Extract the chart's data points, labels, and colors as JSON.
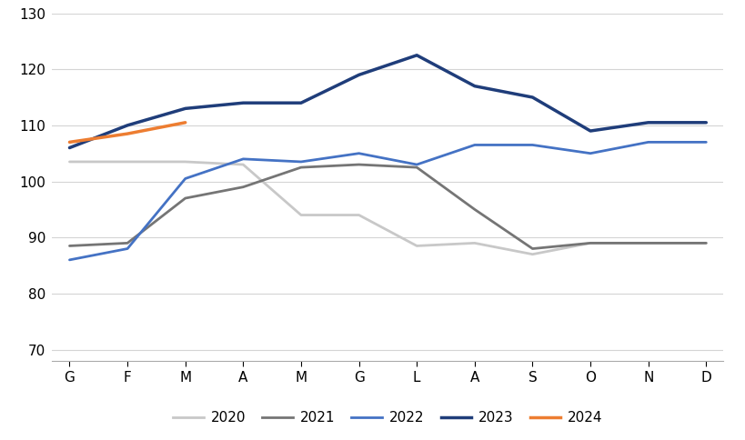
{
  "months": [
    "G",
    "F",
    "M",
    "A",
    "M",
    "G",
    "L",
    "A",
    "S",
    "O",
    "N",
    "D"
  ],
  "series": {
    "2020": [
      103.5,
      103.5,
      103.5,
      103.0,
      94.0,
      94.0,
      88.5,
      89.0,
      87.0,
      89.0,
      89.0,
      89.0
    ],
    "2021": [
      88.5,
      89.0,
      97.0,
      99.0,
      102.5,
      103.0,
      102.5,
      95.0,
      88.0,
      89.0,
      89.0,
      89.0
    ],
    "2022": [
      86.0,
      88.0,
      100.5,
      104.0,
      103.5,
      105.0,
      103.0,
      106.5,
      106.5,
      105.0,
      107.0,
      107.0
    ],
    "2023": [
      106.0,
      110.0,
      113.0,
      114.0,
      114.0,
      119.0,
      122.5,
      117.0,
      115.0,
      109.0,
      110.5,
      110.5
    ],
    "2024": [
      107.0,
      108.5,
      110.5,
      null,
      null,
      null,
      null,
      null,
      null,
      null,
      null,
      null
    ]
  },
  "colors": {
    "2020": "#c8c8c8",
    "2021": "#757575",
    "2022": "#4472c4",
    "2023": "#1f3d7a",
    "2024": "#ed7d31"
  },
  "line_widths": {
    "2020": 2.0,
    "2021": 2.0,
    "2022": 2.0,
    "2023": 2.5,
    "2024": 2.5
  },
  "ylim": [
    68,
    130
  ],
  "yticks": [
    70,
    80,
    90,
    100,
    110,
    120,
    130
  ],
  "background_color": "#ffffff",
  "grid_color": "#d4d4d4",
  "legend_order": [
    "2020",
    "2021",
    "2022",
    "2023",
    "2024"
  ],
  "figsize": [
    8.2,
    4.84
  ],
  "dpi": 100
}
